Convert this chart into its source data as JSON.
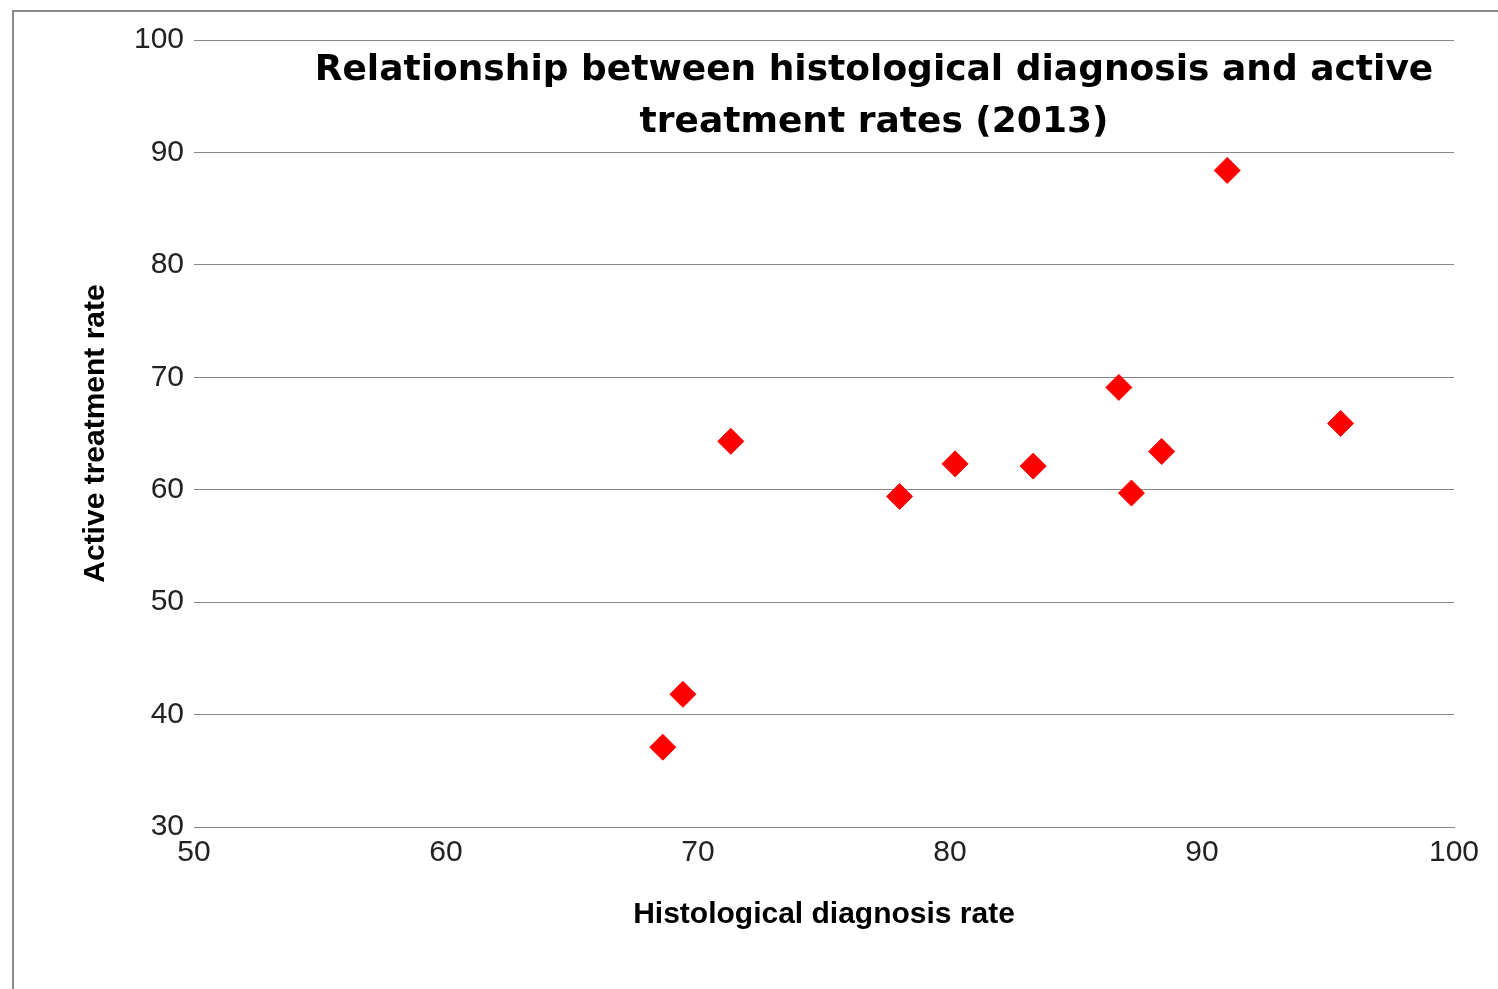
{
  "chart_data": {
    "type": "scatter",
    "title": "Relationship between histological diagnosis and active treatment rates (2013)",
    "xlabel": "Histological diagnosis rate",
    "ylabel": "Active treatment rate",
    "x": [
      68.6,
      69.4,
      71.3,
      78.0,
      80.2,
      83.3,
      86.7,
      87.2,
      88.4,
      91.0,
      95.5
    ],
    "series": [
      {
        "color": "#ff0000",
        "values": [
          37.1,
          41.8,
          64.3,
          59.4,
          62.3,
          62.1,
          69.1,
          59.7,
          63.4,
          88.4,
          65.9
        ]
      }
    ],
    "xlim": [
      50,
      100
    ],
    "xticks": [
      50,
      60,
      70,
      80,
      90,
      100
    ],
    "ylim": [
      30,
      100
    ],
    "yticks": [
      30,
      40,
      50,
      60,
      70,
      80,
      90,
      100
    ],
    "grid": "y",
    "legend": false,
    "marker": "diamond"
  }
}
